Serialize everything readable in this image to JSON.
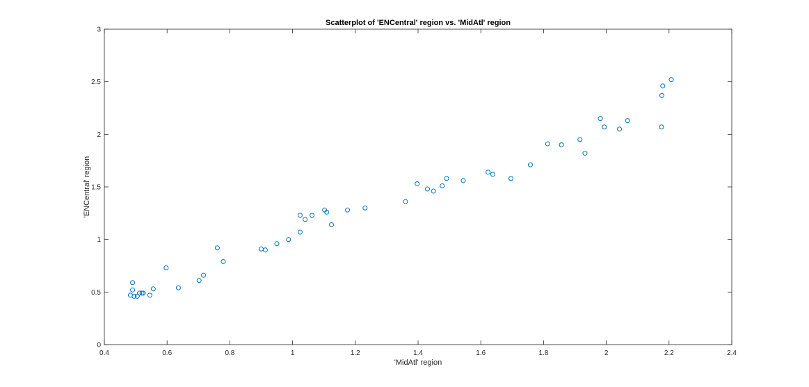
{
  "chart_data": {
    "type": "scatter",
    "title": "Scatterplot of 'ENCentral' region vs. 'MidAtl' region",
    "xlabel": "'MidAtl' region",
    "ylabel": "'ENCentral' region",
    "xlim": [
      0.4,
      2.4
    ],
    "ylim": [
      0,
      3
    ],
    "xticks": [
      "0.4",
      "0.6",
      "0.8",
      "1",
      "1.2",
      "1.4",
      "1.6",
      "1.8",
      "2",
      "2.2",
      "2.4"
    ],
    "yticks": [
      "0",
      "0.5",
      "1",
      "1.5",
      "2",
      "2.5",
      "3"
    ],
    "grid": false,
    "marker_color": "#0072bd",
    "axis_color": "#262626",
    "series": [
      {
        "marker": "circle",
        "points": [
          [
            0.483,
            0.47
          ],
          [
            0.49,
            0.59
          ],
          [
            0.49,
            0.52
          ],
          [
            0.495,
            0.46
          ],
          [
            0.505,
            0.46
          ],
          [
            0.512,
            0.49
          ],
          [
            0.52,
            0.49
          ],
          [
            0.524,
            0.49
          ],
          [
            0.545,
            0.47
          ],
          [
            0.556,
            0.53
          ],
          [
            0.597,
            0.73
          ],
          [
            0.636,
            0.54
          ],
          [
            0.702,
            0.61
          ],
          [
            0.716,
            0.66
          ],
          [
            0.76,
            0.92
          ],
          [
            0.779,
            0.79
          ],
          [
            0.9,
            0.91
          ],
          [
            0.913,
            0.9
          ],
          [
            0.95,
            0.96
          ],
          [
            0.987,
            1.0
          ],
          [
            1.024,
            1.07
          ],
          [
            1.024,
            1.23
          ],
          [
            1.04,
            1.19
          ],
          [
            1.062,
            1.23
          ],
          [
            1.102,
            1.28
          ],
          [
            1.109,
            1.26
          ],
          [
            1.124,
            1.14
          ],
          [
            1.175,
            1.28
          ],
          [
            1.231,
            1.3
          ],
          [
            1.36,
            1.36
          ],
          [
            1.397,
            1.53
          ],
          [
            1.43,
            1.48
          ],
          [
            1.449,
            1.46
          ],
          [
            1.477,
            1.51
          ],
          [
            1.491,
            1.58
          ],
          [
            1.544,
            1.56
          ],
          [
            1.623,
            1.64
          ],
          [
            1.638,
            1.62
          ],
          [
            1.696,
            1.58
          ],
          [
            1.758,
            1.71
          ],
          [
            1.813,
            1.91
          ],
          [
            1.857,
            1.9
          ],
          [
            1.916,
            1.95
          ],
          [
            1.932,
            1.82
          ],
          [
            1.981,
            2.15
          ],
          [
            1.994,
            2.07
          ],
          [
            2.042,
            2.05
          ],
          [
            2.068,
            2.13
          ],
          [
            2.176,
            2.07
          ],
          [
            2.177,
            2.37
          ],
          [
            2.18,
            2.46
          ],
          [
            2.207,
            2.52
          ]
        ]
      }
    ]
  }
}
